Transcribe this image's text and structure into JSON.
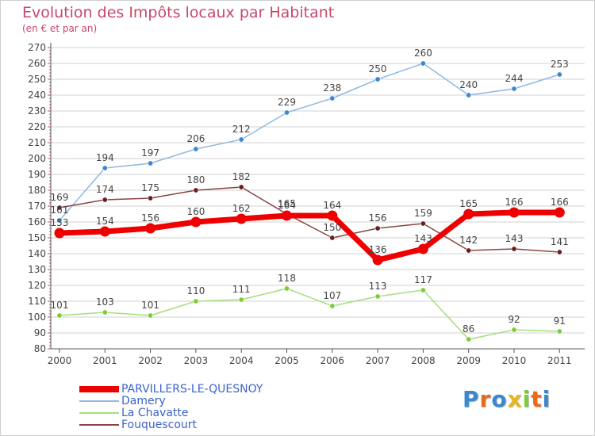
{
  "title": "Evolution des Impôts locaux par Habitant",
  "subtitle": "(en € et par an)",
  "logo_text": "Proxiti",
  "colors": {
    "title": "#c8476a",
    "legend_text": "#3a62c9",
    "axis": "#555555",
    "grid": "#d0d0d0"
  },
  "chart_data": {
    "type": "line",
    "title": "Evolution des Impôts locaux par Habitant",
    "subtitle": "(en € et par an)",
    "xlabel": "",
    "ylabel": "",
    "x": [
      "2000",
      "2001",
      "2002",
      "2003",
      "2004",
      "2005",
      "2006",
      "2007",
      "2008",
      "2009",
      "2010",
      "2011"
    ],
    "ylim": [
      80,
      270
    ],
    "ytick_step": 10,
    "grid": "horizontal",
    "legend_position": "bottom-left",
    "series": [
      {
        "name": "PARVILLERS-LE-QUESNOY",
        "color": "#ee0000",
        "line_color": "#ee0000",
        "width": "thick",
        "values": [
          153,
          154,
          156,
          160,
          162,
          164,
          164,
          136,
          143,
          165,
          166,
          166
        ]
      },
      {
        "name": "Damery",
        "color": "#3a88d0",
        "line_color": "#8fb9e0",
        "width": "thin",
        "values": [
          161,
          194,
          197,
          206,
          212,
          229,
          238,
          250,
          260,
          240,
          244,
          253
        ]
      },
      {
        "name": "La Chavatte",
        "color": "#7ccc3a",
        "line_color": "#a5de7c",
        "width": "thin",
        "values": [
          101,
          103,
          101,
          110,
          111,
          118,
          107,
          113,
          117,
          86,
          92,
          91
        ]
      },
      {
        "name": "Fouquescourt",
        "color": "#6b1d1d",
        "line_color": "#8a4444",
        "width": "thin",
        "values": [
          169,
          174,
          175,
          180,
          182,
          165,
          150,
          156,
          159,
          142,
          143,
          141
        ]
      }
    ]
  }
}
